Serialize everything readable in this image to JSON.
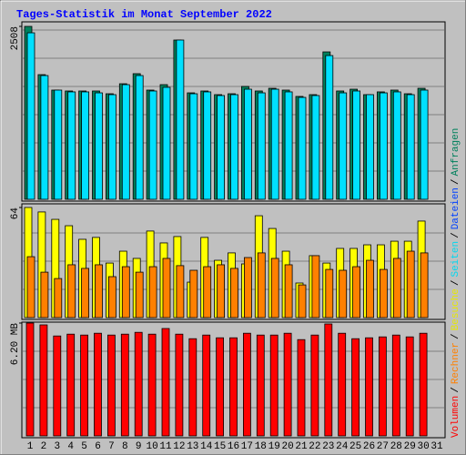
{
  "title": "Tages-Statistik im Monat September 2022",
  "legend": [
    {
      "label": "Volumen",
      "color": "#ff0000"
    },
    {
      "label": "Rechner",
      "color": "#ff8000"
    },
    {
      "label": "Besuche",
      "color": "#e8e800"
    },
    {
      "label": "Seiten",
      "color": "#00d8f0"
    },
    {
      "label": "Dateien",
      "color": "#0040ff"
    },
    {
      "label": "Anfragen",
      "color": "#00805c"
    }
  ],
  "legend_separator": "/",
  "chart_data": [
    {
      "type": "bar",
      "ylim": [
        0,
        2508
      ],
      "yticks": [
        2508
      ],
      "series": [
        {
          "color": "#00805c",
          "values": [
            2508,
            1808,
            1584,
            1571,
            1571,
            1571,
            1531,
            1676,
            1822,
            1584,
            1663,
            2310,
            1544,
            1571,
            1518,
            1531,
            1637,
            1571,
            1610,
            1584,
            1492,
            1518,
            2138,
            1571,
            1597,
            1518,
            1558,
            1584,
            1531,
            1610,
            null
          ]
        },
        {
          "color": "#00e0ff",
          "values": [
            2415,
            1795,
            1584,
            1558,
            1558,
            1544,
            1518,
            1663,
            1795,
            1571,
            1624,
            2310,
            1531,
            1558,
            1505,
            1518,
            1597,
            1544,
            1597,
            1558,
            1478,
            1505,
            2085,
            1544,
            1571,
            1518,
            1544,
            1558,
            1518,
            1584,
            null
          ]
        }
      ]
    },
    {
      "type": "bar",
      "ylim": [
        0,
        64
      ],
      "yticks": [
        64
      ],
      "series": [
        {
          "color": "#ffff00",
          "values": [
            64,
            61.4,
            57.1,
            53.4,
            45.5,
            46.6,
            31.7,
            38.6,
            34.4,
            50.3,
            43.4,
            47.1,
            20.6,
            46.6,
            33.3,
            37.6,
            31.2,
            59.2,
            51.8,
            38.6,
            20.1,
            36.0,
            31.7,
            40.2,
            40.2,
            42.3,
            42.3,
            44.4,
            44.4,
            56.1,
            null
          ]
        },
        {
          "color": "#ff8000",
          "values": [
            35.4,
            26.4,
            22.7,
            30.7,
            28.6,
            30.7,
            23.8,
            29.6,
            26.4,
            29.6,
            34.4,
            30.2,
            27.5,
            29.6,
            30.7,
            28.6,
            34.9,
            37.6,
            34.4,
            30.7,
            19.0,
            36.0,
            28.0,
            27.5,
            29.6,
            33.3,
            28.0,
            34.4,
            38.6,
            37.6,
            null
          ]
        }
      ]
    },
    {
      "type": "bar",
      "ylim": [
        0,
        6.2
      ],
      "yticks": [
        {
          "value": 6.2,
          "label": "6.20 MB"
        }
      ],
      "categories": [
        "1",
        "2",
        "3",
        "4",
        "5",
        "6",
        "7",
        "8",
        "9",
        "10",
        "11",
        "12",
        "13",
        "14",
        "15",
        "16",
        "17",
        "18",
        "19",
        "20",
        "21",
        "22",
        "23",
        "24",
        "25",
        "26",
        "27",
        "28",
        "29",
        "30",
        "31"
      ],
      "series": [
        {
          "color": "#ff0000",
          "values": [
            6.2,
            6.1,
            5.49,
            5.59,
            5.54,
            5.64,
            5.54,
            5.59,
            5.69,
            5.59,
            5.9,
            5.59,
            5.34,
            5.54,
            5.39,
            5.39,
            5.64,
            5.54,
            5.54,
            5.64,
            5.29,
            5.54,
            6.15,
            5.64,
            5.34,
            5.39,
            5.44,
            5.54,
            5.44,
            5.64,
            null
          ]
        }
      ]
    }
  ]
}
